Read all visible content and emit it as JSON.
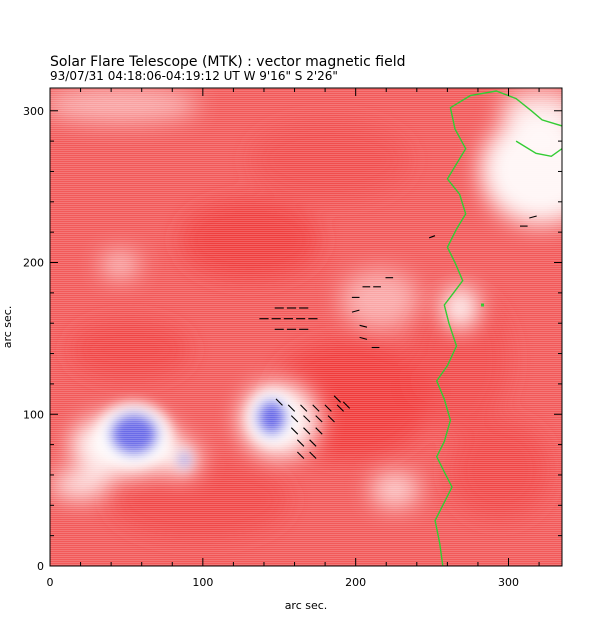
{
  "chart_data": {
    "type": "heatmap",
    "title": "Solar Flare Telescope (MTK) : vector magnetic field",
    "subtitle": "93/07/31   04:18:06-04:19:12 UT     W 9'16\"  S 2'26\"",
    "xlabel": "arc sec.",
    "ylabel": "arc sec.",
    "xlim": [
      0,
      335
    ],
    "ylim": [
      0,
      315
    ],
    "x_ticks": [
      0,
      100,
      200,
      300
    ],
    "y_ticks": [
      0,
      100,
      200,
      300
    ],
    "x_tick_labels": [
      "0",
      "100",
      "200",
      "300"
    ],
    "y_tick_labels": [
      "0",
      "100",
      "200",
      "300"
    ],
    "colors": {
      "positive_polarity": "#f03a3a",
      "weak_field": "#ffffff",
      "negative_polarity": "#5a5ae6",
      "contour": "#33cc33",
      "vectors": "#000000"
    },
    "negative_regions": [
      {
        "cx": 55,
        "cy": 87,
        "rx": 16,
        "ry": 14
      },
      {
        "cx": 88,
        "cy": 70,
        "rx": 3,
        "ry": 5
      },
      {
        "cx": 145,
        "cy": 98,
        "rx": 10,
        "ry": 12
      }
    ],
    "contour_line": [
      [
        257,
        0
      ],
      [
        255,
        15
      ],
      [
        252,
        30
      ],
      [
        258,
        42
      ],
      [
        263,
        52
      ],
      [
        258,
        62
      ],
      [
        253,
        72
      ],
      [
        258,
        82
      ],
      [
        262,
        96
      ],
      [
        258,
        110
      ],
      [
        253,
        122
      ],
      [
        260,
        132
      ],
      [
        266,
        145
      ],
      [
        261,
        160
      ],
      [
        258,
        172
      ],
      [
        264,
        180
      ],
      [
        270,
        188
      ],
      [
        265,
        200
      ],
      [
        260,
        210
      ],
      [
        266,
        222
      ],
      [
        272,
        232
      ],
      [
        268,
        245
      ],
      [
        260,
        255
      ],
      [
        266,
        265
      ],
      [
        272,
        275
      ],
      [
        265,
        288
      ],
      [
        262,
        302
      ],
      [
        275,
        310
      ],
      [
        292,
        313
      ],
      [
        305,
        308
      ],
      [
        315,
        300
      ],
      [
        322,
        294
      ],
      [
        335,
        290
      ]
    ],
    "contour_line_2": [
      [
        305,
        280
      ],
      [
        318,
        272
      ],
      [
        328,
        270
      ],
      [
        335,
        275
      ]
    ],
    "vectors": [
      {
        "x": 150,
        "y": 170,
        "angle": 0,
        "len": 6
      },
      {
        "x": 158,
        "y": 170,
        "angle": 0,
        "len": 6
      },
      {
        "x": 166,
        "y": 170,
        "angle": 0,
        "len": 6
      },
      {
        "x": 140,
        "y": 163,
        "angle": 0,
        "len": 6
      },
      {
        "x": 148,
        "y": 163,
        "angle": 0,
        "len": 6
      },
      {
        "x": 156,
        "y": 163,
        "angle": 0,
        "len": 6
      },
      {
        "x": 164,
        "y": 163,
        "angle": 0,
        "len": 6
      },
      {
        "x": 172,
        "y": 163,
        "angle": 0,
        "len": 6
      },
      {
        "x": 150,
        "y": 156,
        "angle": 0,
        "len": 6
      },
      {
        "x": 158,
        "y": 156,
        "angle": 0,
        "len": 6
      },
      {
        "x": 166,
        "y": 156,
        "angle": 0,
        "len": 6
      },
      {
        "x": 200,
        "y": 177,
        "angle": 0,
        "len": 5
      },
      {
        "x": 207,
        "y": 184,
        "angle": 0,
        "len": 5
      },
      {
        "x": 214,
        "y": 184,
        "angle": 0,
        "len": 5
      },
      {
        "x": 222,
        "y": 190,
        "angle": 0,
        "len": 5
      },
      {
        "x": 200,
        "y": 168,
        "angle": 15,
        "len": 5
      },
      {
        "x": 205,
        "y": 158,
        "angle": -15,
        "len": 5
      },
      {
        "x": 205,
        "y": 150,
        "angle": -15,
        "len": 5
      },
      {
        "x": 213,
        "y": 144,
        "angle": 0,
        "len": 5
      },
      {
        "x": 250,
        "y": 217,
        "angle": 20,
        "len": 4
      },
      {
        "x": 310,
        "y": 224,
        "angle": 0,
        "len": 5
      },
      {
        "x": 316,
        "y": 230,
        "angle": 15,
        "len": 5
      },
      {
        "x": 150,
        "y": 108,
        "angle": -45,
        "len": 6
      },
      {
        "x": 158,
        "y": 104,
        "angle": -45,
        "len": 6
      },
      {
        "x": 166,
        "y": 104,
        "angle": -45,
        "len": 6
      },
      {
        "x": 174,
        "y": 104,
        "angle": -45,
        "len": 6
      },
      {
        "x": 182,
        "y": 104,
        "angle": -45,
        "len": 6
      },
      {
        "x": 190,
        "y": 104,
        "angle": -45,
        "len": 6
      },
      {
        "x": 160,
        "y": 97,
        "angle": -45,
        "len": 6
      },
      {
        "x": 168,
        "y": 97,
        "angle": -45,
        "len": 6
      },
      {
        "x": 176,
        "y": 97,
        "angle": -45,
        "len": 6
      },
      {
        "x": 184,
        "y": 97,
        "angle": -45,
        "len": 6
      },
      {
        "x": 160,
        "y": 89,
        "angle": -45,
        "len": 6
      },
      {
        "x": 168,
        "y": 89,
        "angle": -45,
        "len": 6
      },
      {
        "x": 176,
        "y": 89,
        "angle": -45,
        "len": 6
      },
      {
        "x": 164,
        "y": 81,
        "angle": -45,
        "len": 6
      },
      {
        "x": 172,
        "y": 81,
        "angle": -45,
        "len": 6
      },
      {
        "x": 164,
        "y": 73,
        "angle": -45,
        "len": 6
      },
      {
        "x": 172,
        "y": 73,
        "angle": -45,
        "len": 6
      },
      {
        "x": 188,
        "y": 110,
        "angle": -45,
        "len": 6
      },
      {
        "x": 194,
        "y": 106,
        "angle": -45,
        "len": 6
      }
    ],
    "green_markers": [
      {
        "x": 283,
        "y": 172
      }
    ]
  }
}
